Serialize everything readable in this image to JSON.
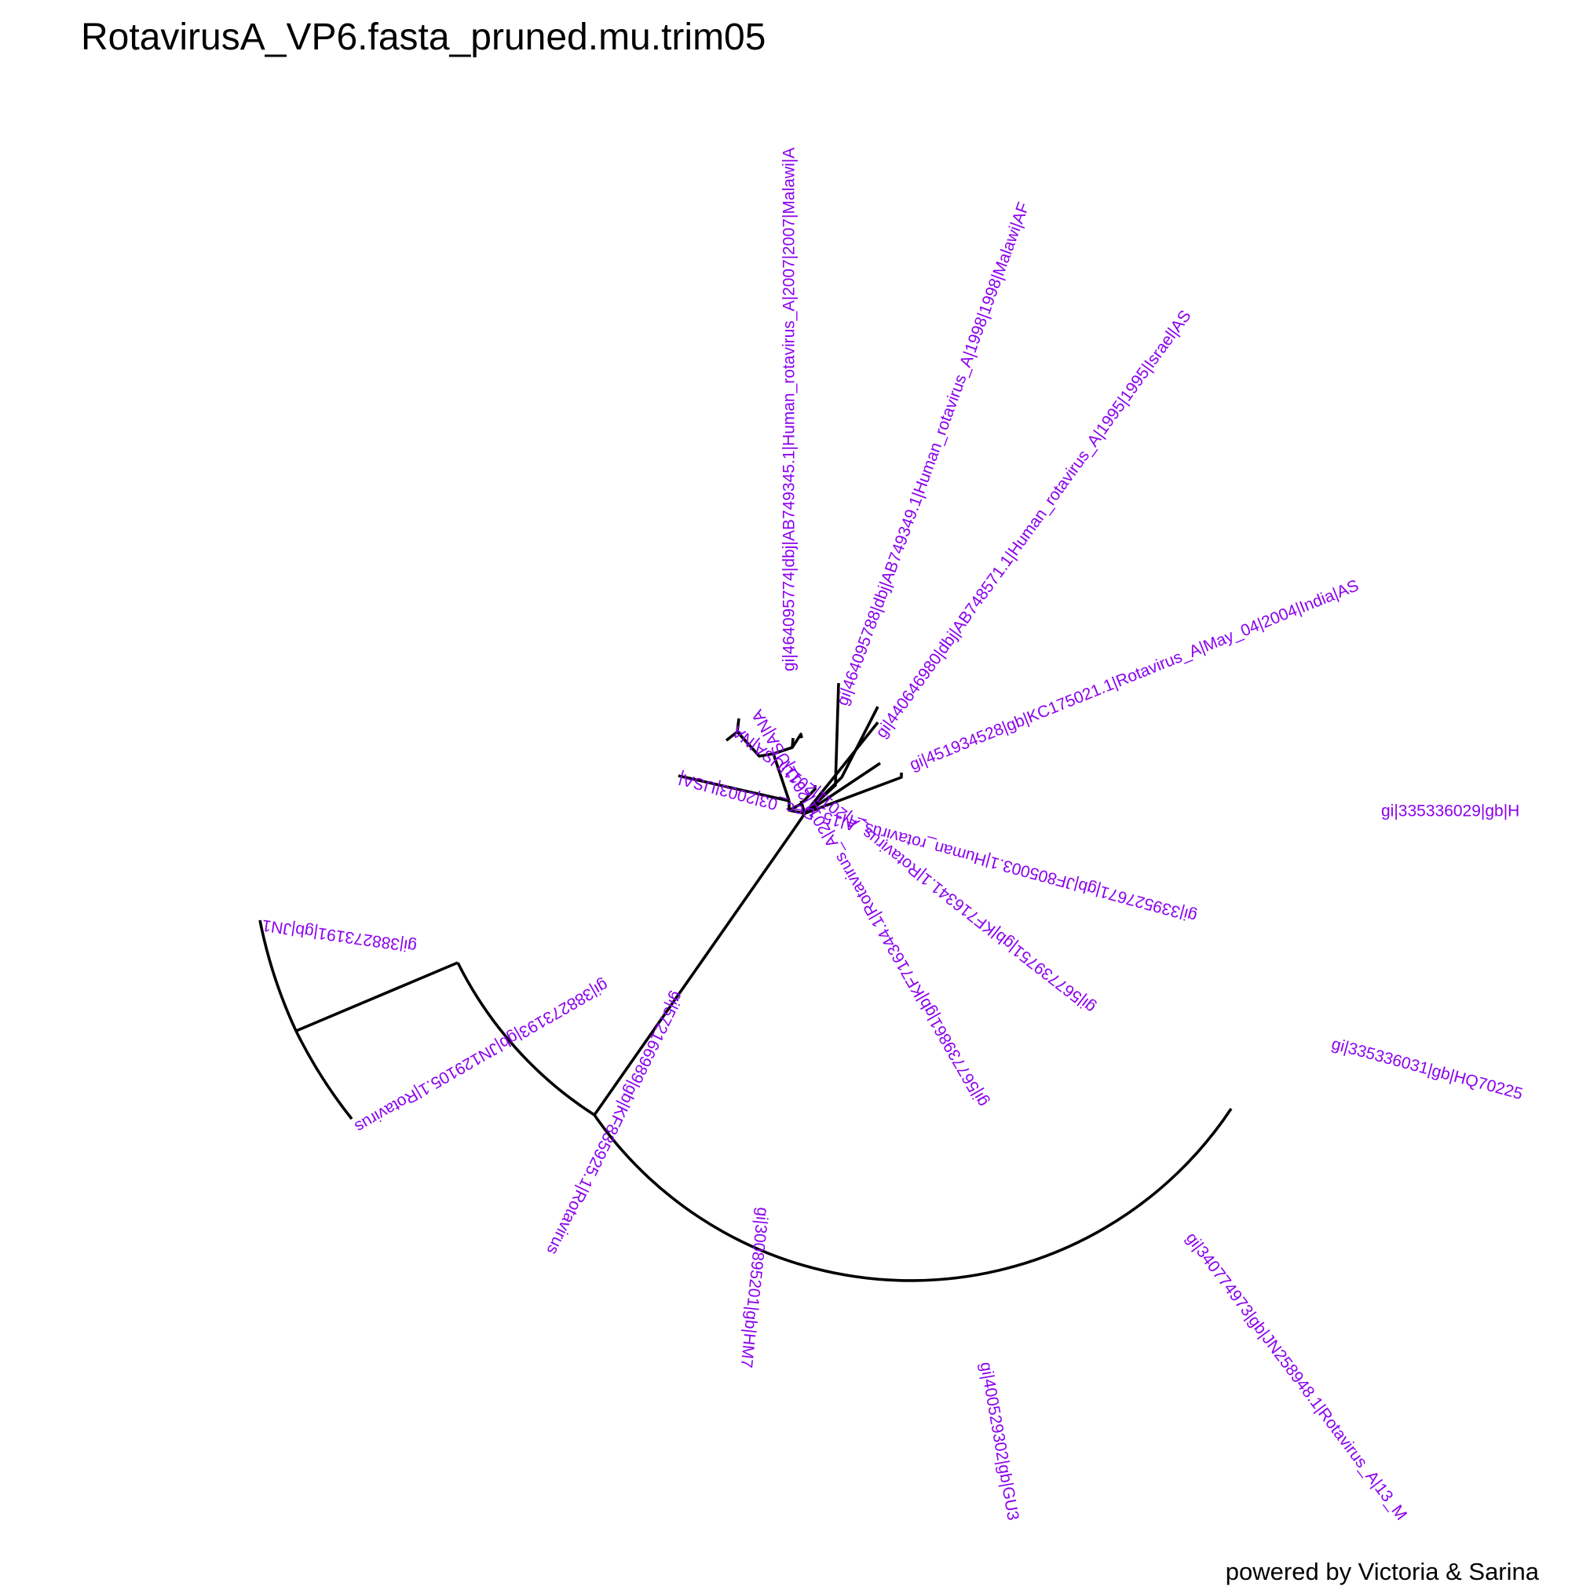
{
  "title": "RotavirusA_VP6.fasta_pruned.mu.trim05",
  "credit": "powered by Victoria & Sarina",
  "colors": {
    "branch": "#000000",
    "label": "#8b00ee",
    "background": "#ffffff"
  },
  "layout_type": "circular phylogenetic tree",
  "tips": [
    "gi|464095774|dbj|AB749345.1|Human_rotavirus_A|2007|2007|Malawi|A",
    "gi|464095788|dbj|AB749349.1|Human_rotavirus_A|1998|1998|Malawi|AF",
    "gi|440646980|dbj|AB748571.1|Human_rotavirus_A|1995|1995|Israel|AS",
    "gi|451934528|gb|KC175021.1|Rotavirus_A|May_04|2004|India|AS",
    "gi|335336029|gb|H",
    "gi|335336031|gb|HQ70225",
    "gi|340774973|gb|JN258948.1|Rotavirus_A|13_M",
    "gi|400529302|gb|GU3",
    "gi|300895201|gb|HM7",
    "gi|572166989|gb|KF835925.1|Rotavirus",
    "gi|388273193|gb|JN129105.1|Rotavirus",
    "gi|388273191|gb|JN1",
    "gi|339527671|gb|JF805003.1|Human_rotavirus_A|15_Dec_03|2003|USA|",
    "gi|567739751|gb|KF716341.1|Rotavirus_A|2011|2011|USA|NA",
    "gi|567739861|gb|KF716344.1|Rotavirus_A|2011|2011|USA|NA"
  ]
}
